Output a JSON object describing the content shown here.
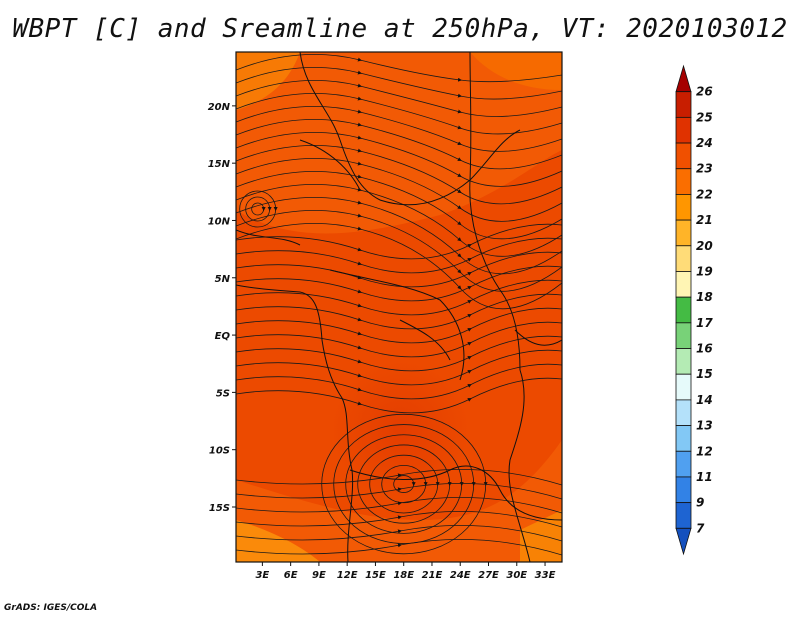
{
  "title": "WBPT [C] and Sreamline at 250hPa, VT: 2020103012",
  "footer": "GrADS: IGES/COLA",
  "chart_data": {
    "type": "heatmap",
    "title": "WBPT [C] and Sreamline at 250hPa, VT: 2020103012",
    "variable": "WBPT [C]",
    "overlay": "Streamline at 250hPa",
    "valid_time": "2020103012",
    "x_ticks": [
      "3E",
      "6E",
      "9E",
      "12E",
      "15E",
      "18E",
      "21E",
      "24E",
      "27E",
      "30E",
      "33E"
    ],
    "x_tick_values": [
      3,
      6,
      9,
      12,
      15,
      18,
      21,
      24,
      27,
      30,
      33
    ],
    "y_ticks": [
      "20N",
      "15N",
      "10N",
      "5N",
      "EQ",
      "5S",
      "10S",
      "15S"
    ],
    "y_tick_values": [
      20,
      15,
      10,
      5,
      0,
      -5,
      -10,
      -15
    ],
    "xlim": [
      0.2,
      34.8
    ],
    "ylim": [
      -19.8,
      24.7
    ],
    "colorbar": {
      "levels": [
        "26",
        "25",
        "24",
        "23",
        "22",
        "21",
        "20",
        "19",
        "18",
        "17",
        "16",
        "15",
        "14",
        "13",
        "12",
        "11",
        "9",
        "7"
      ],
      "colors": [
        "#a50000",
        "#c81e00",
        "#e03200",
        "#f05000",
        "#fa6e00",
        "#ff9600",
        "#ffb428",
        "#ffdc78",
        "#fff5b4",
        "#44bb44",
        "#78d278",
        "#b4ebb4",
        "#e6fafa",
        "#b4e1fa",
        "#82c8f5",
        "#50a0f0",
        "#3282e6",
        "#1e64d2",
        "#1450be"
      ]
    },
    "dominant_values": "WBPT 22-24 C over most of the domain, locally 21 C in the southwest and northwest corners"
  }
}
